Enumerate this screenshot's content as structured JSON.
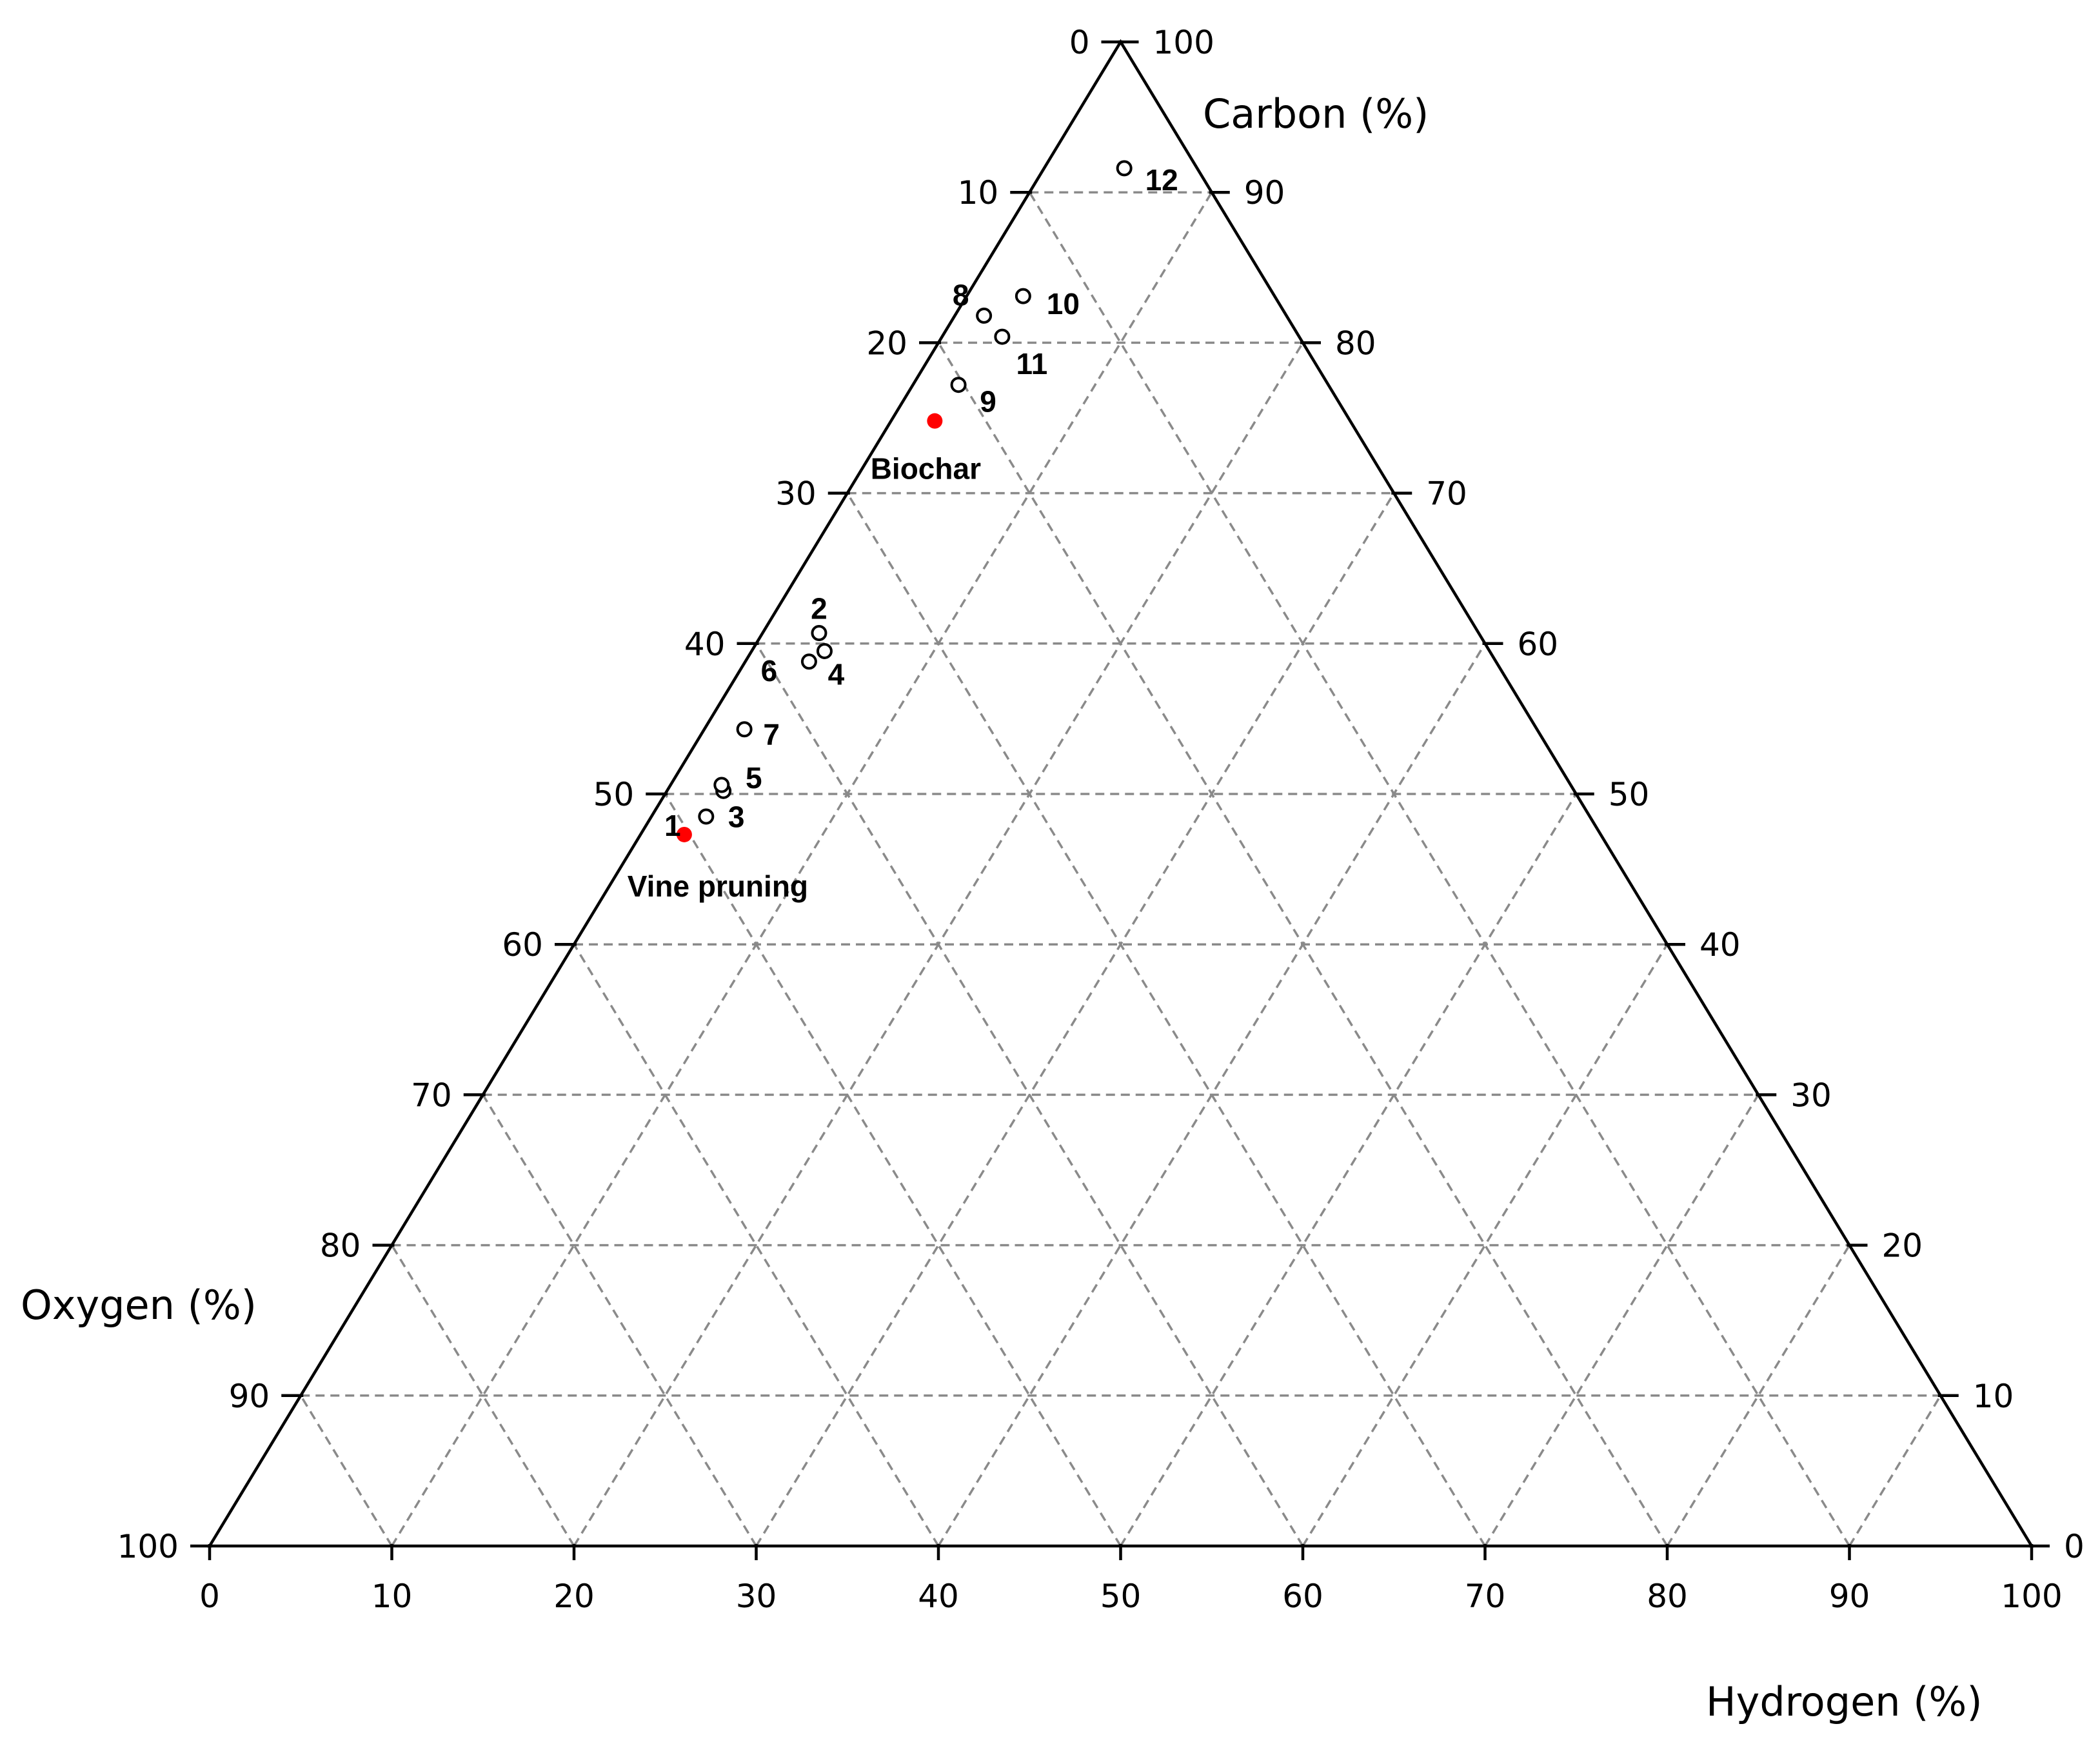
{
  "chart_data": {
    "type": "scatter",
    "subtype": "ternary",
    "axes": {
      "carbon": {
        "label": "Carbon (%)",
        "range": [
          0,
          100
        ],
        "ticks": [
          0,
          10,
          20,
          30,
          40,
          50,
          60,
          70,
          80,
          90,
          100
        ]
      },
      "oxygen": {
        "label": "Oxygen (%)",
        "range": [
          0,
          100
        ],
        "ticks": [
          0,
          10,
          20,
          30,
          40,
          50,
          60,
          70,
          80,
          90,
          100
        ]
      },
      "hydrogen": {
        "label": "Hydrogen (%)",
        "range": [
          0,
          100
        ],
        "ticks": [
          0,
          10,
          20,
          30,
          40,
          50,
          60,
          70,
          80,
          90,
          100
        ]
      }
    },
    "grid": true,
    "series": [
      {
        "marker": "open-circle",
        "color": "#000000",
        "points": [
          {
            "label": "1",
            "carbon": 48.5,
            "oxygen": 48.5,
            "hydrogen": 3.0
          },
          {
            "label": "2",
            "carbon": 60.7,
            "oxygen": 36.2,
            "hydrogen": 3.1
          },
          {
            "label": "3",
            "carbon": 50.2,
            "oxygen": 46.7,
            "hydrogen": 3.1
          },
          {
            "label": "4",
            "carbon": 59.5,
            "oxygen": 36.5,
            "hydrogen": 4.0
          },
          {
            "label": "5",
            "carbon": 50.6,
            "oxygen": 46.6,
            "hydrogen": 2.8
          },
          {
            "label": "6",
            "carbon": 58.8,
            "oxygen": 37.7,
            "hydrogen": 3.5
          },
          {
            "label": "7",
            "carbon": 54.3,
            "oxygen": 43.5,
            "hydrogen": 2.2
          },
          {
            "label": "8",
            "carbon": 81.8,
            "oxygen": 16.6,
            "hydrogen": 1.6
          },
          {
            "label": "9",
            "carbon": 77.2,
            "oxygen": 20.3,
            "hydrogen": 2.5
          },
          {
            "label": "10",
            "carbon": 83.1,
            "oxygen": 13.8,
            "hydrogen": 3.1
          },
          {
            "label": "11",
            "carbon": 80.4,
            "oxygen": 16.3,
            "hydrogen": 3.3
          },
          {
            "label": "12",
            "carbon": 91.6,
            "oxygen": 4.0,
            "hydrogen": 4.4
          }
        ]
      },
      {
        "marker": "filled-circle",
        "color": "#ff0000",
        "points": [
          {
            "label": "Biochar",
            "carbon": 74.8,
            "oxygen": 22.8,
            "hydrogen": 2.4
          },
          {
            "label": "Vine pruning",
            "carbon": 47.3,
            "oxygen": 50.3,
            "hydrogen": 2.4
          }
        ]
      }
    ]
  }
}
